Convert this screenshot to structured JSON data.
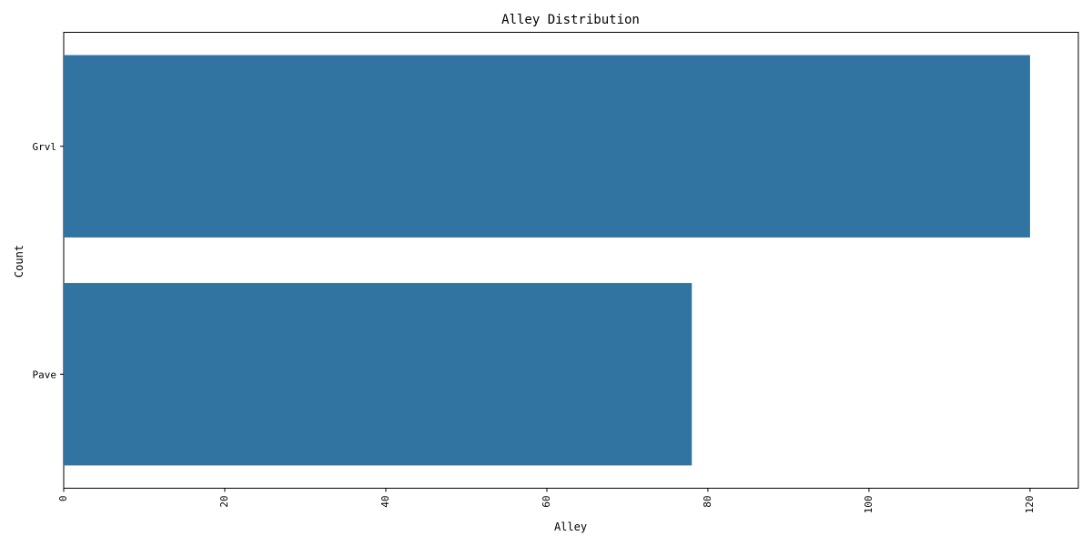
{
  "chart_data": {
    "type": "bar",
    "orientation": "horizontal",
    "title": "Alley Distribution",
    "xlabel": "Alley",
    "ylabel": "Count",
    "categories": [
      "Grvl",
      "Pave"
    ],
    "values": [
      120,
      78
    ],
    "xlim": [
      0,
      126
    ],
    "xticks": [
      0,
      20,
      40,
      60,
      80,
      100,
      120
    ],
    "xtick_rotation": "vertical",
    "bar_color": "#3274a1",
    "grid": false,
    "legend": "none"
  }
}
